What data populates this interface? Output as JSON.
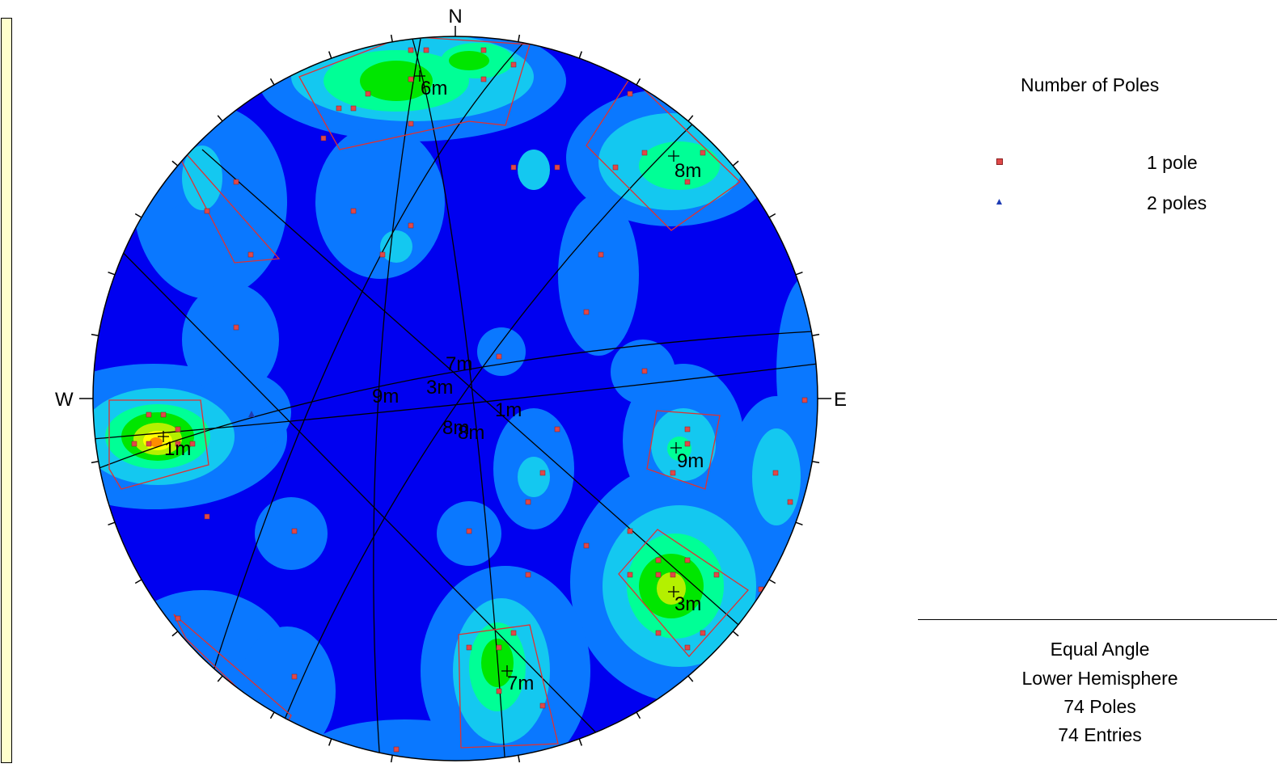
{
  "stereonet": {
    "compass": {
      "north": "N",
      "east": "E",
      "west": "W"
    },
    "colors": {
      "background": "#0000f0",
      "level1": "#0a78ff",
      "level2": "#14c8f0",
      "level3": "#00ff96",
      "level4": "#00e600",
      "level5": "#b4f000",
      "level6": "#ffff00",
      "level7": "#ff8c00",
      "pole_marker": "#e04848",
      "window_outline": "#e03030",
      "great_circle": "#000000"
    },
    "set_labels": [
      "1m",
      "3m",
      "6m",
      "7m",
      "8m",
      "9m"
    ],
    "center_labels": [
      "7m",
      "3m",
      "9m",
      "1m",
      "8m",
      "8m"
    ]
  },
  "legend": {
    "title": "Number of Poles",
    "entries": [
      {
        "label": "1 pole",
        "symbol": "square",
        "color": "#e04848"
      },
      {
        "label": "2 poles",
        "symbol": "triangle",
        "color": "#1e3cb4"
      }
    ]
  },
  "info": {
    "projection": "Equal Angle",
    "hemisphere": "Lower Hemisphere",
    "poles": "74 Poles",
    "entries": "74 Entries"
  }
}
